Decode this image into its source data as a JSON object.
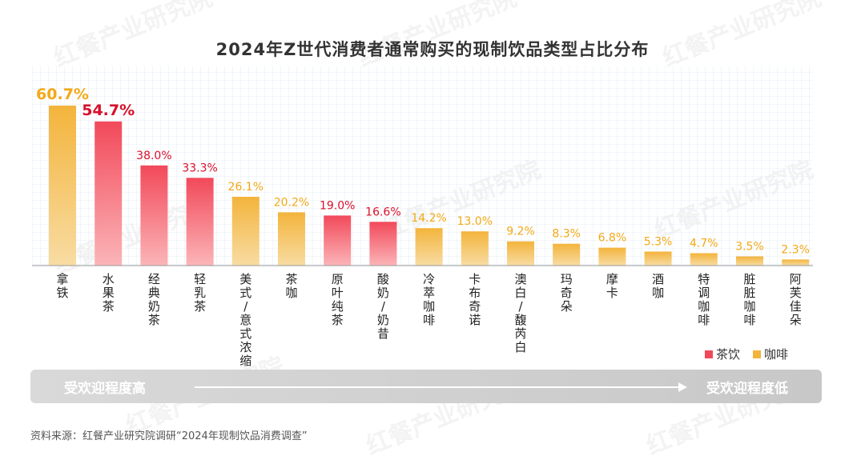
{
  "title": "2024年Z世代消费者通常购买的现制饮品类型占比分布",
  "colors": {
    "tea": "#f2495a",
    "coffee": "#f3b43c",
    "highlight_tea": "#d9102a",
    "highlight_coffee": "#f3a916"
  },
  "legend": {
    "tea": "茶饮",
    "coffee": "咖啡"
  },
  "band": {
    "left": "受欢迎程度高",
    "right": "受欢迎程度低"
  },
  "source": "资料来源：红餐产业研究院调研“2024年现制饮品消费调查”",
  "watermark": "红餐产业研究院",
  "chart_data": {
    "type": "bar",
    "title": "2024年Z世代消费者通常购买的现制饮品类型占比分布",
    "ylabel": "",
    "xlabel": "",
    "ylim": [
      0,
      65
    ],
    "unit": "%",
    "categories": [
      "拿铁",
      "水果茶",
      "经典奶茶",
      "轻乳茶",
      "美式/意式浓缩",
      "茶咖",
      "原叶纯茶",
      "酸奶/奶昔",
      "冷萃咖啡",
      "卡布奇诺",
      "澳白/馥芮白",
      "玛奇朵",
      "摩卡",
      "酒咖",
      "特调咖啡",
      "脏脏咖啡",
      "阿芙佳朵"
    ],
    "values": [
      60.7,
      54.7,
      38.0,
      33.3,
      26.1,
      20.2,
      19.0,
      16.6,
      14.2,
      13.0,
      9.2,
      8.3,
      6.8,
      5.3,
      4.7,
      3.5,
      2.3
    ],
    "labels": [
      "60.7%",
      "54.7%",
      "38.0%",
      "33.3%",
      "26.1%",
      "20.2%",
      "19.0%",
      "16.6%",
      "14.2%",
      "13.0%",
      "9.2%",
      "8.3%",
      "6.8%",
      "5.3%",
      "4.7%",
      "3.5%",
      "2.3%"
    ],
    "group": [
      "coffee",
      "tea",
      "tea",
      "tea",
      "coffee",
      "coffee",
      "tea",
      "tea",
      "coffee",
      "coffee",
      "coffee",
      "coffee",
      "coffee",
      "coffee",
      "coffee",
      "coffee",
      "coffee"
    ],
    "highlighted": [
      true,
      true,
      false,
      false,
      false,
      false,
      false,
      false,
      false,
      false,
      false,
      false,
      false,
      false,
      false,
      false,
      false
    ],
    "legend": [
      "茶饮",
      "咖啡"
    ],
    "grid": true
  }
}
